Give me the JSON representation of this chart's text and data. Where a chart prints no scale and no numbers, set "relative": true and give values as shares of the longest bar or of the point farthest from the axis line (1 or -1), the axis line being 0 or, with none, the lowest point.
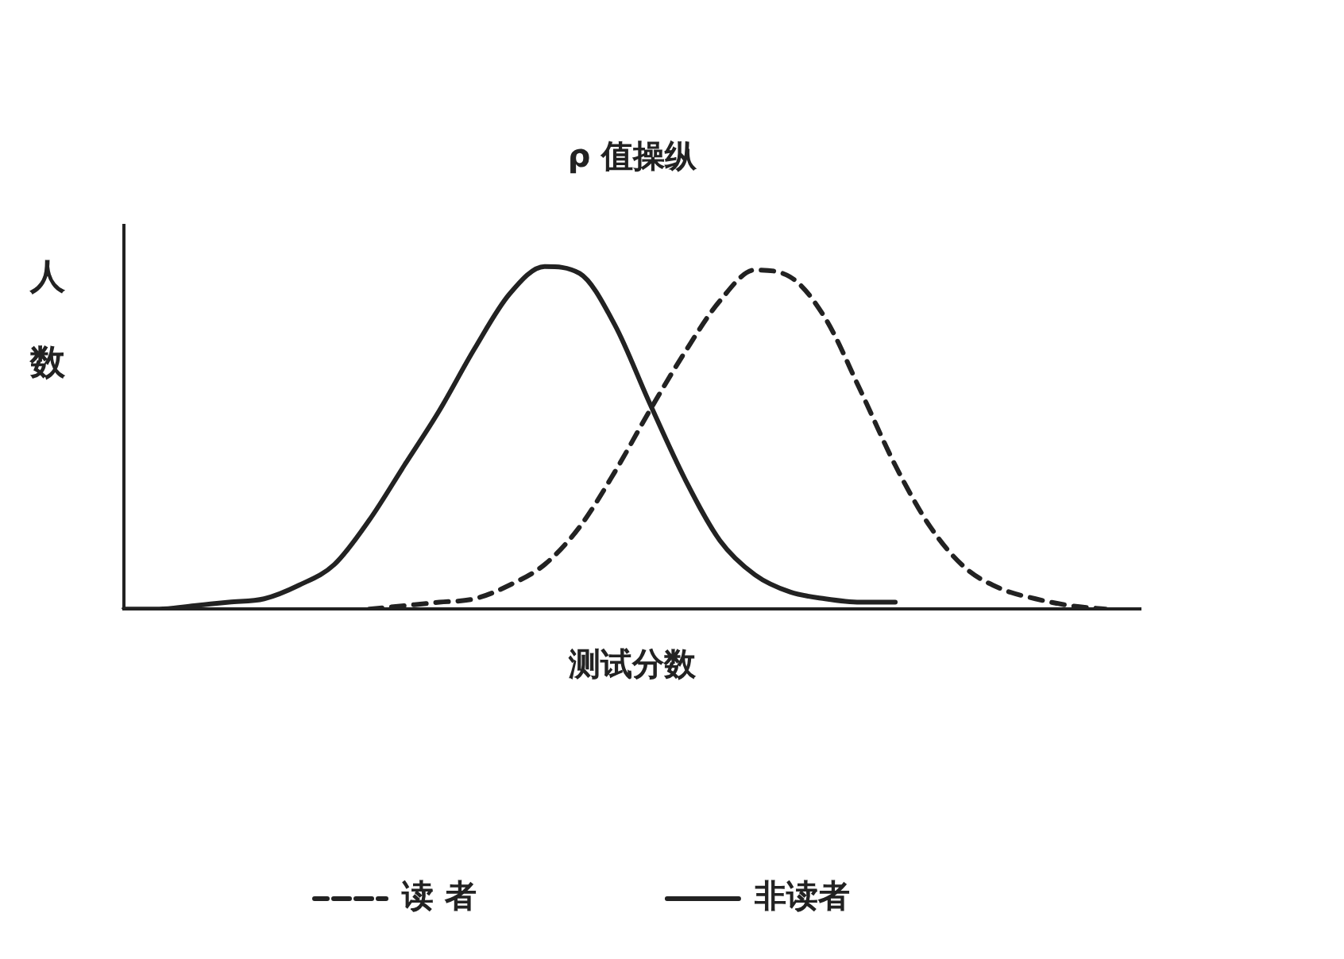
{
  "chart_data": {
    "type": "line",
    "title": "ρ 值操纵",
    "xlabel": "测试分数",
    "ylabel": "人数",
    "relative": true,
    "legend": "bottom",
    "marker": "none",
    "grid": false,
    "categories": [
      null,
      null,
      null,
      null,
      null,
      null,
      null,
      null,
      null,
      null,
      null,
      null,
      null,
      null,
      null,
      null,
      null,
      null,
      null,
      null,
      null,
      null,
      null,
      null,
      null,
      null,
      null,
      null,
      null,
      null
    ],
    "series": [
      {
        "name": "读 者",
        "color": "#222222",
        "line_style": "dashed",
        "values": [
          null,
          null,
          null,
          null,
          null,
          null,
          null,
          0.0,
          0.01,
          0.02,
          0.03,
          0.07,
          0.13,
          0.24,
          0.4,
          0.58,
          0.75,
          0.9,
          0.99,
          0.97,
          0.85,
          0.64,
          0.42,
          0.24,
          0.12,
          0.06,
          0.03,
          0.01,
          0.0,
          null
        ]
      },
      {
        "name": "非读者",
        "color": "#222222",
        "line_style": "solid",
        "values": [
          0.0,
          0.0,
          0.01,
          0.02,
          0.03,
          0.07,
          0.13,
          0.26,
          0.42,
          0.58,
          0.76,
          0.92,
          1.0,
          0.98,
          0.83,
          0.6,
          0.38,
          0.2,
          0.1,
          0.05,
          0.03,
          0.02,
          0.02,
          null,
          null,
          null,
          null,
          null,
          null,
          null
        ]
      }
    ]
  }
}
